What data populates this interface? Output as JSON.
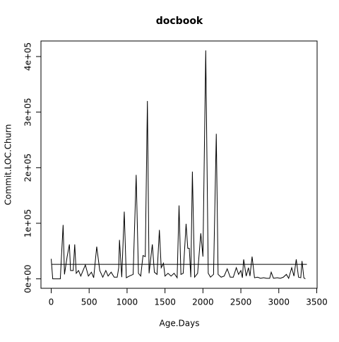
{
  "chart_data": {
    "type": "line",
    "title": "docbook",
    "x_label": "Age.Days",
    "y_label": "Commit.LOC.Churn",
    "x": [
      0,
      20,
      60,
      120,
      157,
      175,
      210,
      240,
      255,
      290,
      310,
      330,
      360,
      390,
      420,
      450,
      490,
      530,
      560,
      600,
      640,
      680,
      720,
      750,
      790,
      830,
      870,
      890,
      900,
      930,
      963,
      990,
      1030,
      1080,
      1120,
      1150,
      1180,
      1210,
      1240,
      1268,
      1290,
      1333,
      1360,
      1395,
      1426,
      1450,
      1480,
      1500,
      1540,
      1580,
      1620,
      1660,
      1685,
      1710,
      1740,
      1778,
      1800,
      1820,
      1840,
      1861,
      1890,
      1930,
      1972,
      2000,
      2037,
      2070,
      2100,
      2140,
      2176,
      2200,
      2240,
      2280,
      2320,
      2360,
      2400,
      2440,
      2470,
      2500,
      2520,
      2537,
      2570,
      2600,
      2620,
      2648,
      2680,
      2720,
      2760,
      2800,
      2840,
      2880,
      2900,
      2930,
      2980,
      3020,
      3060,
      3100,
      3130,
      3170,
      3200,
      3230,
      3260,
      3290,
      3306,
      3330,
      3350
    ],
    "values": [
      36000,
      0,
      0,
      0,
      97000,
      8000,
      40000,
      62000,
      15000,
      15000,
      62000,
      10000,
      15000,
      5000,
      15000,
      25000,
      5000,
      12000,
      2000,
      58000,
      15000,
      3000,
      15000,
      5000,
      12000,
      3000,
      3000,
      20000,
      70000,
      3000,
      121000,
      2000,
      5000,
      8000,
      187000,
      10000,
      5000,
      42000,
      40000,
      320000,
      10000,
      62000,
      12000,
      8000,
      88000,
      20000,
      28000,
      5000,
      10000,
      5000,
      10000,
      2000,
      132000,
      8000,
      10000,
      99000,
      55000,
      55000,
      3000,
      193000,
      3000,
      10000,
      82000,
      40000,
      411000,
      10000,
      3000,
      8000,
      261000,
      8000,
      3000,
      5000,
      18000,
      3000,
      3000,
      20000,
      8000,
      15000,
      2000,
      35000,
      5000,
      20000,
      5000,
      40000,
      2000,
      3000,
      1000,
      2000,
      1000,
      1000,
      12000,
      1000,
      2000,
      1000,
      3000,
      8000,
      1000,
      20000,
      5000,
      35000,
      3000,
      2000,
      32000,
      2000,
      0
    ],
    "color": "#000000",
    "hline": {
      "value": 26000,
      "x": [
        0,
        3370
      ]
    },
    "xlim": [
      -135,
      3505
    ],
    "ylim": [
      -17000,
      428000
    ],
    "xticks": [
      0,
      500,
      1000,
      1500,
      2000,
      2500,
      3000,
      3500
    ],
    "yticks": [
      {
        "value": 0,
        "label": "0e+00"
      },
      {
        "value": 100000,
        "label": "1e+05"
      },
      {
        "value": 200000,
        "label": "2e+05"
      },
      {
        "value": 300000,
        "label": "3e+05"
      },
      {
        "value": 400000,
        "label": "4e+05"
      }
    ]
  }
}
